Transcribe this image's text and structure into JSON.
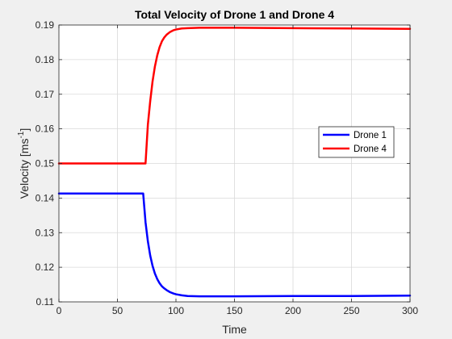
{
  "chart_data": {
    "type": "line",
    "title": "Total Velocity of Drone 1 and Drone 4",
    "xlabel": "Time",
    "ylabel_main": "Velocity [ms",
    "ylabel_sup": "-1",
    "ylabel_end": "]",
    "xlim": [
      0,
      300
    ],
    "ylim": [
      0.11,
      0.19
    ],
    "xticks": [
      0,
      50,
      100,
      150,
      200,
      250,
      300
    ],
    "xtick_labels": [
      "0",
      "50",
      "100",
      "150",
      "200",
      "250",
      "300"
    ],
    "yticks": [
      0.11,
      0.12,
      0.13,
      0.14,
      0.15,
      0.16,
      0.17,
      0.18,
      0.19
    ],
    "ytick_labels": [
      "0.11",
      "0.12",
      "0.13",
      "0.14",
      "0.15",
      "0.16",
      "0.17",
      "0.18",
      "0.19"
    ],
    "grid": true,
    "legend": "right",
    "series": [
      {
        "name": "Drone 1",
        "color": "#0000ff",
        "x": [
          0,
          70,
          72,
          74,
          76,
          78,
          80,
          82,
          84,
          86,
          88,
          90,
          92,
          95,
          98,
          100,
          105,
          110,
          120,
          130,
          150,
          200,
          250,
          300
        ],
        "y": [
          0.1413,
          0.1413,
          0.1413,
          0.133,
          0.1275,
          0.1234,
          0.1204,
          0.1182,
          0.1166,
          0.1154,
          0.1145,
          0.1139,
          0.1134,
          0.1128,
          0.1124,
          0.1122,
          0.1119,
          0.1117,
          0.1116,
          0.1116,
          0.1116,
          0.1117,
          0.1117,
          0.1118
        ]
      },
      {
        "name": "Drone 4",
        "color": "#ff0000",
        "x": [
          0,
          74,
          76,
          78,
          80,
          82,
          84,
          86,
          88,
          90,
          92,
          95,
          98,
          100,
          105,
          110,
          120,
          130,
          150,
          200,
          250,
          300
        ],
        "y": [
          0.15,
          0.15,
          0.1612,
          0.168,
          0.1737,
          0.178,
          0.1812,
          0.1836,
          0.1853,
          0.1864,
          0.1872,
          0.188,
          0.1885,
          0.1887,
          0.189,
          0.1891,
          0.1892,
          0.1892,
          0.1892,
          0.1891,
          0.189,
          0.1889
        ]
      }
    ]
  }
}
